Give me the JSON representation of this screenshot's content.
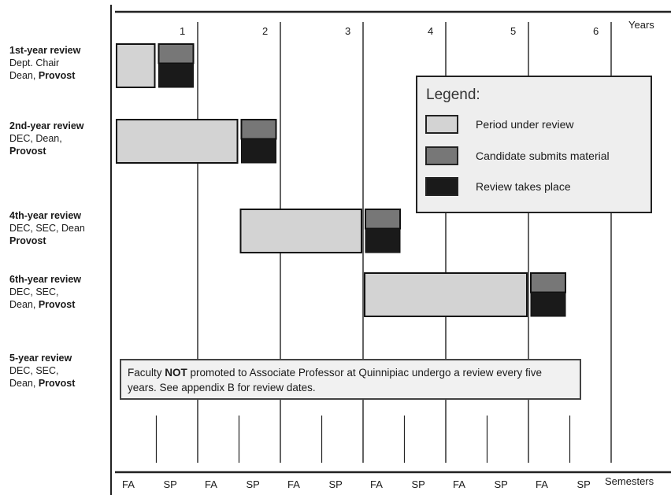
{
  "years": [
    "1",
    "2",
    "3",
    "4",
    "5",
    "6"
  ],
  "years_title": "Years",
  "semesters": [
    "FA",
    "SP",
    "FA",
    "SP",
    "FA",
    "SP",
    "FA",
    "SP",
    "FA",
    "SP",
    "FA",
    "SP"
  ],
  "semesters_title": "Semesters",
  "colors": {
    "period_under_review": "#d3d3d3",
    "candidate_submits": "#777777",
    "review_takes_place": "#1a1a1a"
  },
  "rows": [
    {
      "title": "1st-year review",
      "line2": "Dept. Chair",
      "line3a": "Dean, ",
      "line3b": "Provost",
      "review_period": {
        "from": 0,
        "to": 0.5
      },
      "submission_semester": 1
    },
    {
      "title": "2nd-year review",
      "line2": "DEC, Dean,",
      "line3b": "Provost",
      "review_period": {
        "from": 0,
        "to": 1.5
      },
      "submission_semester": 3
    },
    {
      "title": "4th-year review",
      "line2": "DEC, SEC, Dean",
      "line3b": "Provost",
      "review_period": {
        "from": 1.5,
        "to": 3
      },
      "submission_semester": 6
    },
    {
      "title": "6th-year review",
      "line2": "DEC, SEC,",
      "line3a": "Dean, ",
      "line3b": "Provost",
      "review_period": {
        "from": 3,
        "to": 5
      },
      "submission_semester": 10
    },
    {
      "title": "5-year review",
      "line2": "DEC, SEC,",
      "line3a": "Dean, ",
      "line3b": "Provost"
    }
  ],
  "legend": {
    "title": "Legend:",
    "items": [
      {
        "label": "Period under review",
        "color_key": "period_under_review"
      },
      {
        "label": "Candidate submits material",
        "color_key": "candidate_submits"
      },
      {
        "label": "Review takes place",
        "color_key": "review_takes_place"
      }
    ]
  },
  "note": {
    "part1": "Faculty ",
    "bold": "NOT",
    "part2": " promoted to Associate Professor at Quinnipiac undergo a review every five years. See appendix B for review dates."
  }
}
